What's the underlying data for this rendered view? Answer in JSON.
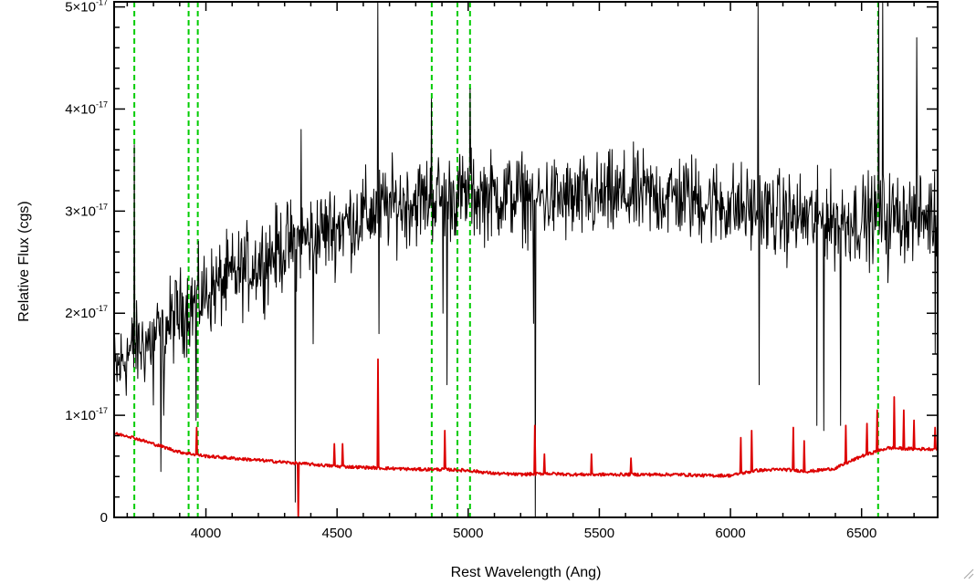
{
  "chart_data": {
    "type": "line",
    "xlabel": "Rest Wavelength (Ang)",
    "ylabel": "Relative Flux (cgs)",
    "xlim": [
      3650,
      6790
    ],
    "ylim": [
      0,
      5.05e-17
    ],
    "x_ticks": [
      {
        "value": 4000,
        "label": "4000"
      },
      {
        "value": 4500,
        "label": "4500"
      },
      {
        "value": 5000,
        "label": "5000"
      },
      {
        "value": 5500,
        "label": "5500"
      },
      {
        "value": 6000,
        "label": "6000"
      },
      {
        "value": 6500,
        "label": "6500"
      }
    ],
    "y_ticks": [
      {
        "value": 0,
        "mant": "0",
        "exp": ""
      },
      {
        "value": 1e-17,
        "mant": "1×10",
        "exp": "-17"
      },
      {
        "value": 2e-17,
        "mant": "2×10",
        "exp": "-17"
      },
      {
        "value": 3e-17,
        "mant": "3×10",
        "exp": "-17"
      },
      {
        "value": 4e-17,
        "mant": "4×10",
        "exp": "-17"
      },
      {
        "value": 5e-17,
        "mant": "5×10",
        "exp": "-17"
      }
    ],
    "grid": false,
    "vlines": {
      "color": "#00cc00",
      "style": "dashed",
      "x": [
        3727,
        3934,
        3969,
        4861,
        4959,
        5007,
        6563
      ]
    },
    "series": [
      {
        "color": "#000000",
        "continuum": [
          [
            3650,
            1.4e-17
          ],
          [
            3700,
            1.6e-17
          ],
          [
            3800,
            1.75e-17
          ],
          [
            3900,
            2e-17
          ],
          [
            4000,
            2.2e-17
          ],
          [
            4100,
            2.35e-17
          ],
          [
            4200,
            2.5e-17
          ],
          [
            4300,
            2.65e-17
          ],
          [
            4400,
            2.75e-17
          ],
          [
            4500,
            2.85e-17
          ],
          [
            4600,
            2.95e-17
          ],
          [
            4700,
            3.05e-17
          ],
          [
            4800,
            3.1e-17
          ],
          [
            4900,
            3.15e-17
          ],
          [
            5000,
            3.15e-17
          ],
          [
            5100,
            3.15e-17
          ],
          [
            5200,
            3.15e-17
          ],
          [
            5400,
            3.1e-17
          ],
          [
            5600,
            3.15e-17
          ],
          [
            5800,
            3.15e-17
          ],
          [
            6000,
            3.05e-17
          ],
          [
            6200,
            2.95e-17
          ],
          [
            6400,
            2.9e-17
          ],
          [
            6600,
            2.95e-17
          ],
          [
            6790,
            2.95e-17
          ]
        ],
        "noise": 4.2e-18,
        "features": [
          [
            3728,
            3.65e-17
          ],
          [
            3800,
            1.1e-17
          ],
          [
            3828,
            4.5e-18
          ],
          [
            3840,
            1e-17
          ],
          [
            3963,
            9.5e-18
          ],
          [
            4340,
            1.5e-18
          ],
          [
            4362,
            3.8e-17
          ],
          [
            4410,
            1.7e-17
          ],
          [
            4655,
            5.05e-17
          ],
          [
            4660,
            1.8e-17
          ],
          [
            4861,
            4.1e-17
          ],
          [
            4905,
            2e-17
          ],
          [
            4920,
            1.3e-17
          ],
          [
            5007,
            4.2e-17
          ],
          [
            5250,
            1.9e-17
          ],
          [
            5256,
            0.0
          ],
          [
            6105,
            5.05e-17
          ],
          [
            6110,
            1.3e-17
          ],
          [
            6330,
            9e-18
          ],
          [
            6355,
            8.5e-18
          ],
          [
            6420,
            9e-18
          ],
          [
            6565,
            5.05e-17
          ],
          [
            6580,
            5.05e-17
          ],
          [
            6600,
            2.3e-17
          ],
          [
            6710,
            4.7e-17
          ],
          [
            6780,
            1.6e-17
          ]
        ]
      },
      {
        "color": "#dd0000",
        "continuum": [
          [
            3650,
            8.2e-18
          ],
          [
            3700,
            8e-18
          ],
          [
            3800,
            7.2e-18
          ],
          [
            3900,
            6.4e-18
          ],
          [
            4000,
            6e-18
          ],
          [
            4100,
            5.8e-18
          ],
          [
            4200,
            5.6e-18
          ],
          [
            4300,
            5.4e-18
          ],
          [
            4400,
            5.2e-18
          ],
          [
            4500,
            5e-18
          ],
          [
            4600,
            4.9e-18
          ],
          [
            4700,
            4.8e-18
          ],
          [
            4800,
            4.7e-18
          ],
          [
            4900,
            4.7e-18
          ],
          [
            5000,
            4.6e-18
          ],
          [
            5100,
            4.3e-18
          ],
          [
            5200,
            4.2e-18
          ],
          [
            5300,
            4.3e-18
          ],
          [
            5400,
            4.2e-18
          ],
          [
            5500,
            4.2e-18
          ],
          [
            5600,
            4.2e-18
          ],
          [
            5700,
            4.2e-18
          ],
          [
            5800,
            4.2e-18
          ],
          [
            5900,
            4.1e-18
          ],
          [
            6000,
            4.1e-18
          ],
          [
            6100,
            4.6e-18
          ],
          [
            6200,
            4.7e-18
          ],
          [
            6300,
            4.5e-18
          ],
          [
            6400,
            4.8e-18
          ],
          [
            6500,
            6e-18
          ],
          [
            6600,
            6.8e-18
          ],
          [
            6700,
            6.7e-18
          ],
          [
            6790,
            6.7e-18
          ]
        ],
        "features": [
          [
            3965,
            8.8e-18
          ],
          [
            4352,
            0.0
          ],
          [
            4490,
            7.2e-18
          ],
          [
            4520,
            7.2e-18
          ],
          [
            4655,
            1.55e-17
          ],
          [
            4910,
            8.5e-18
          ],
          [
            5255,
            9e-18
          ],
          [
            5290,
            6.2e-18
          ],
          [
            5470,
            6.2e-18
          ],
          [
            5620,
            5.8e-18
          ],
          [
            6040,
            7.8e-18
          ],
          [
            6080,
            8.5e-18
          ],
          [
            6240,
            8.8e-18
          ],
          [
            6280,
            7.5e-18
          ],
          [
            6440,
            9e-18
          ],
          [
            6520,
            9.2e-18
          ],
          [
            6560,
            1.05e-17
          ],
          [
            6625,
            1.18e-17
          ],
          [
            6660,
            1.05e-17
          ],
          [
            6700,
            9.5e-18
          ],
          [
            6780,
            8.8e-18
          ]
        ]
      }
    ]
  }
}
